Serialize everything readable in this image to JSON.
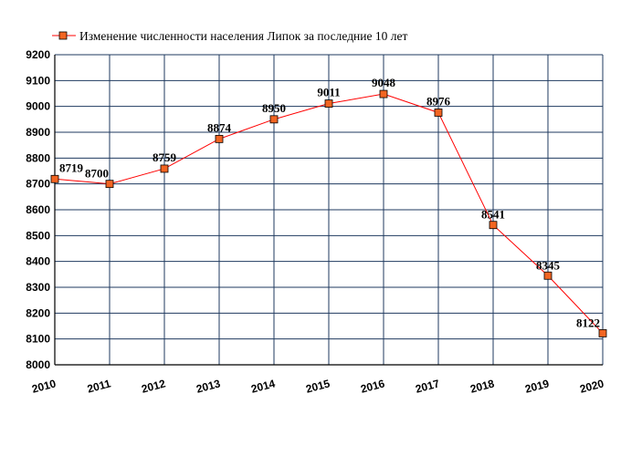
{
  "chart_data": {
    "type": "line",
    "legend": "Изменение численности населения Липок за последние 10 лет",
    "legend_position": "top-left",
    "x": [
      "2010",
      "2011",
      "2012",
      "2013",
      "2014",
      "2015",
      "2016",
      "2017",
      "2018",
      "2019",
      "2020"
    ],
    "series": [
      {
        "name": "Изменение численности населения Липок за последние 10 лет",
        "values": [
          8719,
          8700,
          8759,
          8874,
          8950,
          9011,
          9048,
          8976,
          8541,
          8345,
          8122
        ],
        "labels": [
          "8719",
          "8700",
          "8759",
          "8874",
          "8950",
          "9011",
          "9048",
          "8976",
          "8541",
          "8345",
          "8122"
        ]
      }
    ],
    "y_ticks": [
      "8000",
      "8100",
      "8200",
      "8300",
      "8400",
      "8500",
      "8600",
      "8700",
      "8800",
      "8900",
      "9000",
      "9100",
      "9200"
    ],
    "ylim": [
      8000,
      9200
    ],
    "grid": true,
    "colors": {
      "line": "#ff0000",
      "marker_fill": "#f26522",
      "marker_stroke": "#000000",
      "grid": "#1f3a5f",
      "axis": "#000000"
    }
  }
}
